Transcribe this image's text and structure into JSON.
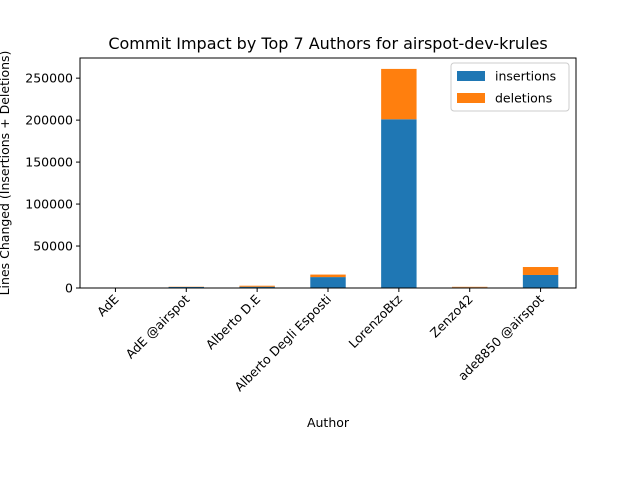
{
  "chart_data": {
    "type": "bar",
    "stacked": true,
    "title": "Commit Impact by Top 7 Authors for airspot-dev-krules",
    "xlabel": "Author",
    "ylabel": "Lines Changed (Insertions + Deletions)",
    "categories": [
      "AdE",
      "AdE @airspot",
      "Alberto D.E",
      "Alberto Degli Esposti",
      "LorenzoBtz",
      "Zenzo42",
      "ade8850 @airspot"
    ],
    "series": [
      {
        "name": "insertions",
        "color": "#1f77b4",
        "values": [
          300,
          1200,
          1500,
          13000,
          201000,
          800,
          15500
        ]
      },
      {
        "name": "deletions",
        "color": "#ff7f0e",
        "values": [
          100,
          300,
          1200,
          3000,
          60000,
          600,
          9500
        ]
      }
    ],
    "yticks": [
      0,
      50000,
      100000,
      150000,
      200000,
      250000
    ],
    "ylim": [
      0,
      274000
    ],
    "grid": false,
    "legend_position": "top-right"
  }
}
